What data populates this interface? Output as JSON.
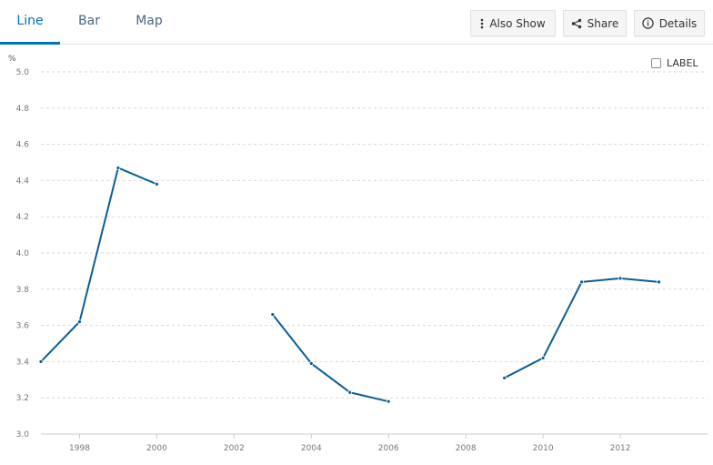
{
  "tabs": [
    {
      "label": "Line",
      "active": true
    },
    {
      "label": "Bar",
      "active": false
    },
    {
      "label": "Map",
      "active": false
    }
  ],
  "toolbar": {
    "also_show_label": "Also Show",
    "share_label": "Share",
    "details_label": "Details"
  },
  "legend": {
    "label": "LABEL",
    "checked": false
  },
  "colors": {
    "accent": "#0071bc",
    "series": "#0b5d97",
    "grid": "#d9d9d9",
    "tick": "#777777"
  },
  "chart_data": {
    "type": "line",
    "ylabel": "%",
    "ylim": [
      3.0,
      5.0
    ],
    "yticks": [
      "3.0",
      "3.2",
      "3.4",
      "3.6",
      "3.8",
      "4.0",
      "4.2",
      "4.4",
      "4.6",
      "4.8",
      "5.0"
    ],
    "xlim": [
      1997,
      2014.4
    ],
    "xticks": [
      "1998",
      "2000",
      "2002",
      "2004",
      "2006",
      "2008",
      "2010",
      "2012"
    ],
    "grid": true,
    "series": [
      {
        "x": [
          1997,
          1998,
          1999,
          2000,
          2001,
          2002,
          2003,
          2004,
          2005,
          2006,
          2007,
          2008,
          2009,
          2010,
          2011,
          2012,
          2013
        ],
        "values": [
          3.4,
          3.62,
          4.47,
          4.38,
          null,
          null,
          3.66,
          3.39,
          3.23,
          3.18,
          null,
          null,
          3.31,
          3.42,
          3.84,
          3.86,
          3.84
        ]
      }
    ]
  }
}
